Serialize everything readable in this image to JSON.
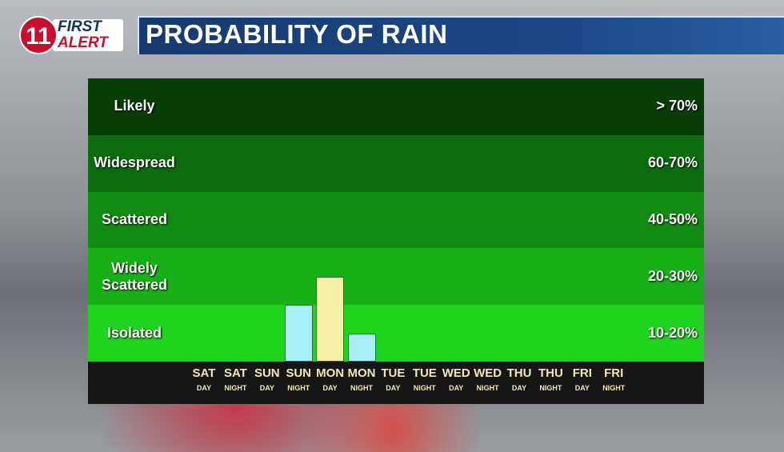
{
  "logo": {
    "number": "11",
    "line1": "FIRST",
    "line2": "ALERT"
  },
  "chart_data": {
    "type": "bar",
    "title": "PROBABILITY OF RAIN",
    "bands": [
      {
        "label": "Likely",
        "range": "> 70%",
        "color": "#073d07"
      },
      {
        "label": "Widespread",
        "range": "60-70%",
        "color": "#0c6b0c"
      },
      {
        "label": "Scattered",
        "range": "40-50%",
        "color": "#118b11"
      },
      {
        "label": "Widely Scattered",
        "range": "20-30%",
        "color": "#17b017"
      },
      {
        "label": "Isolated",
        "range": "10-20%",
        "color": "#1fd41f"
      }
    ],
    "categories": [
      [
        "SAT",
        "DAY"
      ],
      [
        "SAT",
        "NIGHT"
      ],
      [
        "SUN",
        "DAY"
      ],
      [
        "SUN",
        "NIGHT"
      ],
      [
        "MON",
        "DAY"
      ],
      [
        "MON",
        "NIGHT"
      ],
      [
        "TUE",
        "DAY"
      ],
      [
        "TUE",
        "NIGHT"
      ],
      [
        "WED",
        "DAY"
      ],
      [
        "WED",
        "NIGHT"
      ],
      [
        "THU",
        "DAY"
      ],
      [
        "THU",
        "NIGHT"
      ],
      [
        "FRI",
        "DAY"
      ],
      [
        "FRI",
        "NIGHT"
      ]
    ],
    "values": [
      null,
      null,
      null,
      20,
      25,
      15,
      null,
      null,
      null,
      null,
      null,
      null,
      null,
      null
    ],
    "colors": [
      null,
      null,
      null,
      "#a9f0f6",
      "#f6f1a6",
      "#a9f0f6",
      null,
      null,
      null,
      null,
      null,
      null,
      null,
      null
    ]
  }
}
